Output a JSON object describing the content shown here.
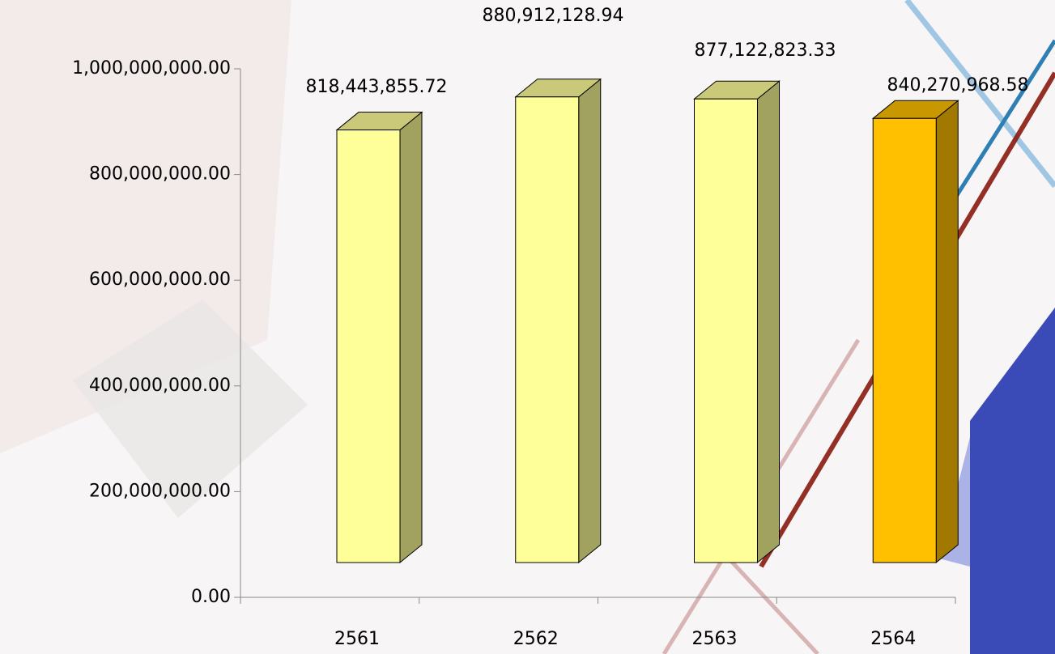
{
  "chart_data": {
    "type": "bar3d",
    "categories": [
      "2561",
      "2562",
      "2563",
      "2564"
    ],
    "values": [
      818443855.72,
      880912128.94,
      877122823.33,
      840270968.58
    ],
    "value_labels": [
      "818,443,855.72",
      "880,912,128.94",
      "877,122,823.33",
      "840,270,968.58"
    ],
    "colors": [
      "#ffff99",
      "#ffff99",
      "#ffff99",
      "#ffc000"
    ],
    "ylim": [
      0,
      1000000000
    ],
    "yticks": [
      {
        "value": 0,
        "label": "0.00"
      },
      {
        "value": 200000000,
        "label": "200,000,000.00"
      },
      {
        "value": 400000000,
        "label": "400,000,000.00"
      },
      {
        "value": 600000000,
        "label": "600,000,000.00"
      },
      {
        "value": 800000000,
        "label": "800,000,000.00"
      },
      {
        "value": 1000000000,
        "label": "1,000,000,000.00"
      }
    ]
  }
}
